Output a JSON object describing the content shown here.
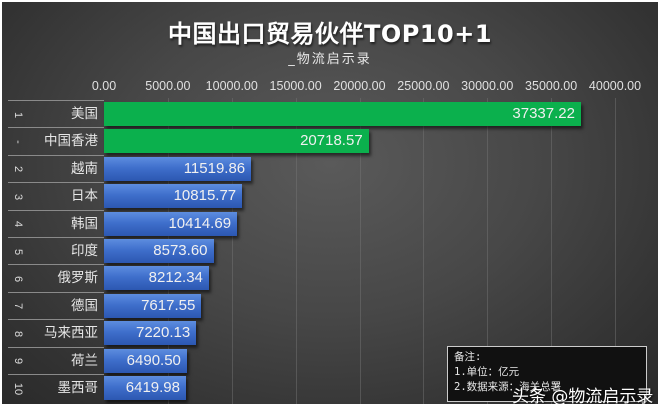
{
  "header": {
    "title": "中国出口贸易伙伴TOP10+1",
    "subtitle": "_物流启示录"
  },
  "axis": {
    "ticks": [
      "0.00",
      "5000.00",
      "10000.00",
      "15000.00",
      "20000.00",
      "25000.00",
      "30000.00",
      "35000.00",
      "40000.00"
    ]
  },
  "rows": [
    {
      "rank": "1",
      "name": "美国",
      "value": "37337.22",
      "color": "green"
    },
    {
      "rank": "-",
      "name": "中国香港",
      "value": "20718.57",
      "color": "green"
    },
    {
      "rank": "2",
      "name": "越南",
      "value": "11519.86",
      "color": "blue"
    },
    {
      "rank": "3",
      "name": "日本",
      "value": "10815.77",
      "color": "blue"
    },
    {
      "rank": "4",
      "name": "韩国",
      "value": "10414.69",
      "color": "blue"
    },
    {
      "rank": "5",
      "name": "印度",
      "value": "8573.60",
      "color": "blue"
    },
    {
      "rank": "6",
      "name": "俄罗斯",
      "value": "8212.34",
      "color": "blue"
    },
    {
      "rank": "7",
      "name": "德国",
      "value": "7617.55",
      "color": "blue"
    },
    {
      "rank": "8",
      "name": "马来西亚",
      "value": "7220.13",
      "color": "blue"
    },
    {
      "rank": "9",
      "name": "荷兰",
      "value": "6490.50",
      "color": "blue"
    },
    {
      "rank": "10",
      "name": "墨西哥",
      "value": "6419.98",
      "color": "blue"
    }
  ],
  "note": {
    "heading": "备注:",
    "line1": "1.单位：亿元",
    "line2": "2.数据来源：海关总署"
  },
  "watermark": {
    "text": "头条 @物流启示录"
  },
  "colors": {
    "green": "#0bb04d",
    "blue": "#3f6fcc",
    "background": "#474747"
  },
  "chart_data": {
    "type": "bar",
    "orientation": "horizontal",
    "title": "中国出口贸易伙伴TOP10+1",
    "subtitle": "_物流启示录",
    "categories": [
      "美国",
      "中国香港",
      "越南",
      "日本",
      "韩国",
      "印度",
      "俄罗斯",
      "德国",
      "马来西亚",
      "荷兰",
      "墨西哥"
    ],
    "ranks": [
      "1",
      "-",
      "2",
      "3",
      "4",
      "5",
      "6",
      "7",
      "8",
      "9",
      "10"
    ],
    "values": [
      37337.22,
      20718.57,
      11519.86,
      10815.77,
      10414.69,
      8573.6,
      8212.34,
      7617.55,
      7220.13,
      6490.5,
      6419.98
    ],
    "xlabel": "",
    "ylabel": "",
    "xlim": [
      0,
      40000
    ],
    "xticks": [
      0,
      5000,
      10000,
      15000,
      20000,
      25000,
      30000,
      35000,
      40000
    ],
    "grid": true,
    "legend": null,
    "annotations": [
      "备注:",
      "1.单位：亿元",
      "2.数据来源：海关总署"
    ],
    "unit": "亿元"
  }
}
